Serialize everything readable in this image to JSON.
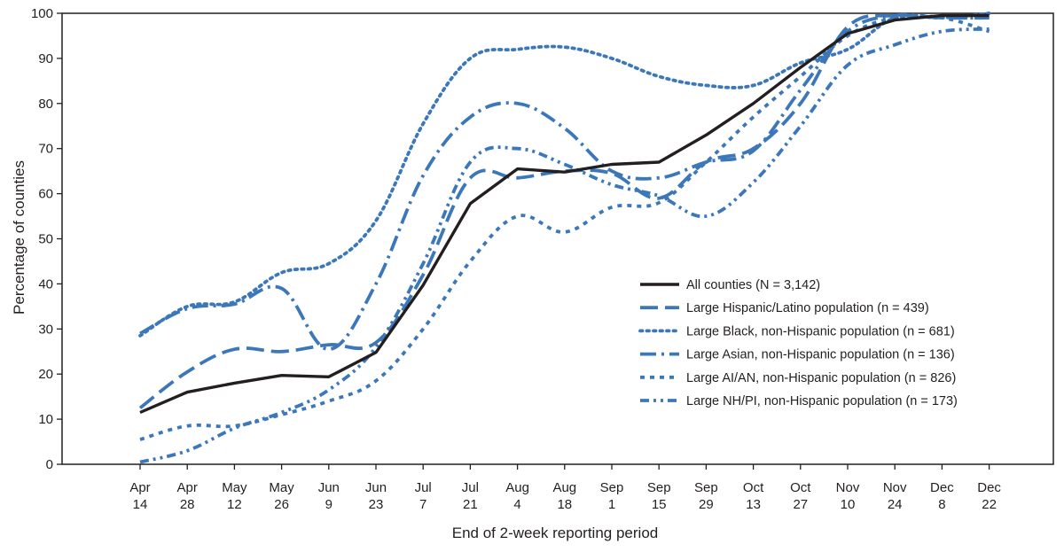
{
  "chart_data": {
    "type": "line",
    "title": "",
    "xlabel": "End of 2-week reporting period",
    "ylabel": "Percentage of counties",
    "ylim": [
      0,
      100
    ],
    "yticks": [
      0,
      10,
      20,
      30,
      40,
      50,
      60,
      70,
      80,
      90,
      100
    ],
    "grid": false,
    "legend_position": "right",
    "categories": [
      [
        "Apr",
        "14"
      ],
      [
        "Apr",
        "28"
      ],
      [
        "May",
        "12"
      ],
      [
        "May",
        "26"
      ],
      [
        "Jun",
        "9"
      ],
      [
        "Jun",
        "23"
      ],
      [
        "Jul",
        "7"
      ],
      [
        "Jul",
        "21"
      ],
      [
        "Aug",
        "4"
      ],
      [
        "Aug",
        "18"
      ],
      [
        "Sep",
        "1"
      ],
      [
        "Sep",
        "15"
      ],
      [
        "Sep",
        "29"
      ],
      [
        "Oct",
        "13"
      ],
      [
        "Oct",
        "27"
      ],
      [
        "Nov",
        "10"
      ],
      [
        "Nov",
        "24"
      ],
      [
        "Dec",
        "8"
      ],
      [
        "Dec",
        "22"
      ]
    ],
    "series": [
      {
        "name": "All counties (N = 3,142)",
        "color": "#231f20",
        "dash": "solid",
        "values": [
          11.5,
          16,
          18,
          19.7,
          19.4,
          24.8,
          39.7,
          57.8,
          65.5,
          64.8,
          66.5,
          67,
          73,
          80,
          88,
          95.5,
          98.5,
          99.5,
          99.5
        ]
      },
      {
        "name": "Large Hispanic/Latino population (n = 439)",
        "color": "#3c78b9",
        "dash": "long-dash",
        "values": [
          12.5,
          20.5,
          25.5,
          25,
          26.5,
          27,
          42,
          63.5,
          63.5,
          65,
          64.5,
          59,
          67,
          70,
          80,
          97,
          99.5,
          99,
          99
        ]
      },
      {
        "name": "Large Black, non-Hispanic population (n = 681)",
        "color": "#3c78b9",
        "dash": "dotted",
        "values": [
          28.5,
          35,
          36,
          42.5,
          44.5,
          54,
          75.5,
          90,
          92,
          92.5,
          90,
          86,
          84,
          84,
          89,
          92,
          99,
          99,
          100
        ]
      },
      {
        "name": "Large Asian, non-Hispanic population (n = 136)",
        "color": "#3c78b9",
        "dash": "dash-dot",
        "values": [
          29,
          34.5,
          35.5,
          39,
          25.5,
          40,
          64,
          77,
          80,
          74.5,
          65,
          63.5,
          67,
          69.5,
          83,
          96,
          99.5,
          99,
          99
        ]
      },
      {
        "name": "Large AI/AN, non-Hispanic population (n = 826)",
        "color": "#3c78b9",
        "dash": "short-dash",
        "values": [
          5.5,
          8.5,
          8.5,
          11,
          14,
          18.5,
          30,
          45,
          55,
          51.5,
          57,
          58,
          67,
          77,
          86,
          95,
          99,
          99,
          96
        ]
      },
      {
        "name": "Large NH/PI, non-Hispanic population (n = 173)",
        "color": "#3c78b9",
        "dash": "dash-dot-dot",
        "values": [
          0.5,
          3,
          8,
          11.5,
          16.5,
          26,
          44.5,
          67,
          70,
          66.5,
          62,
          59.5,
          55,
          62.5,
          75,
          88.5,
          93,
          96,
          96.5
        ]
      }
    ]
  }
}
